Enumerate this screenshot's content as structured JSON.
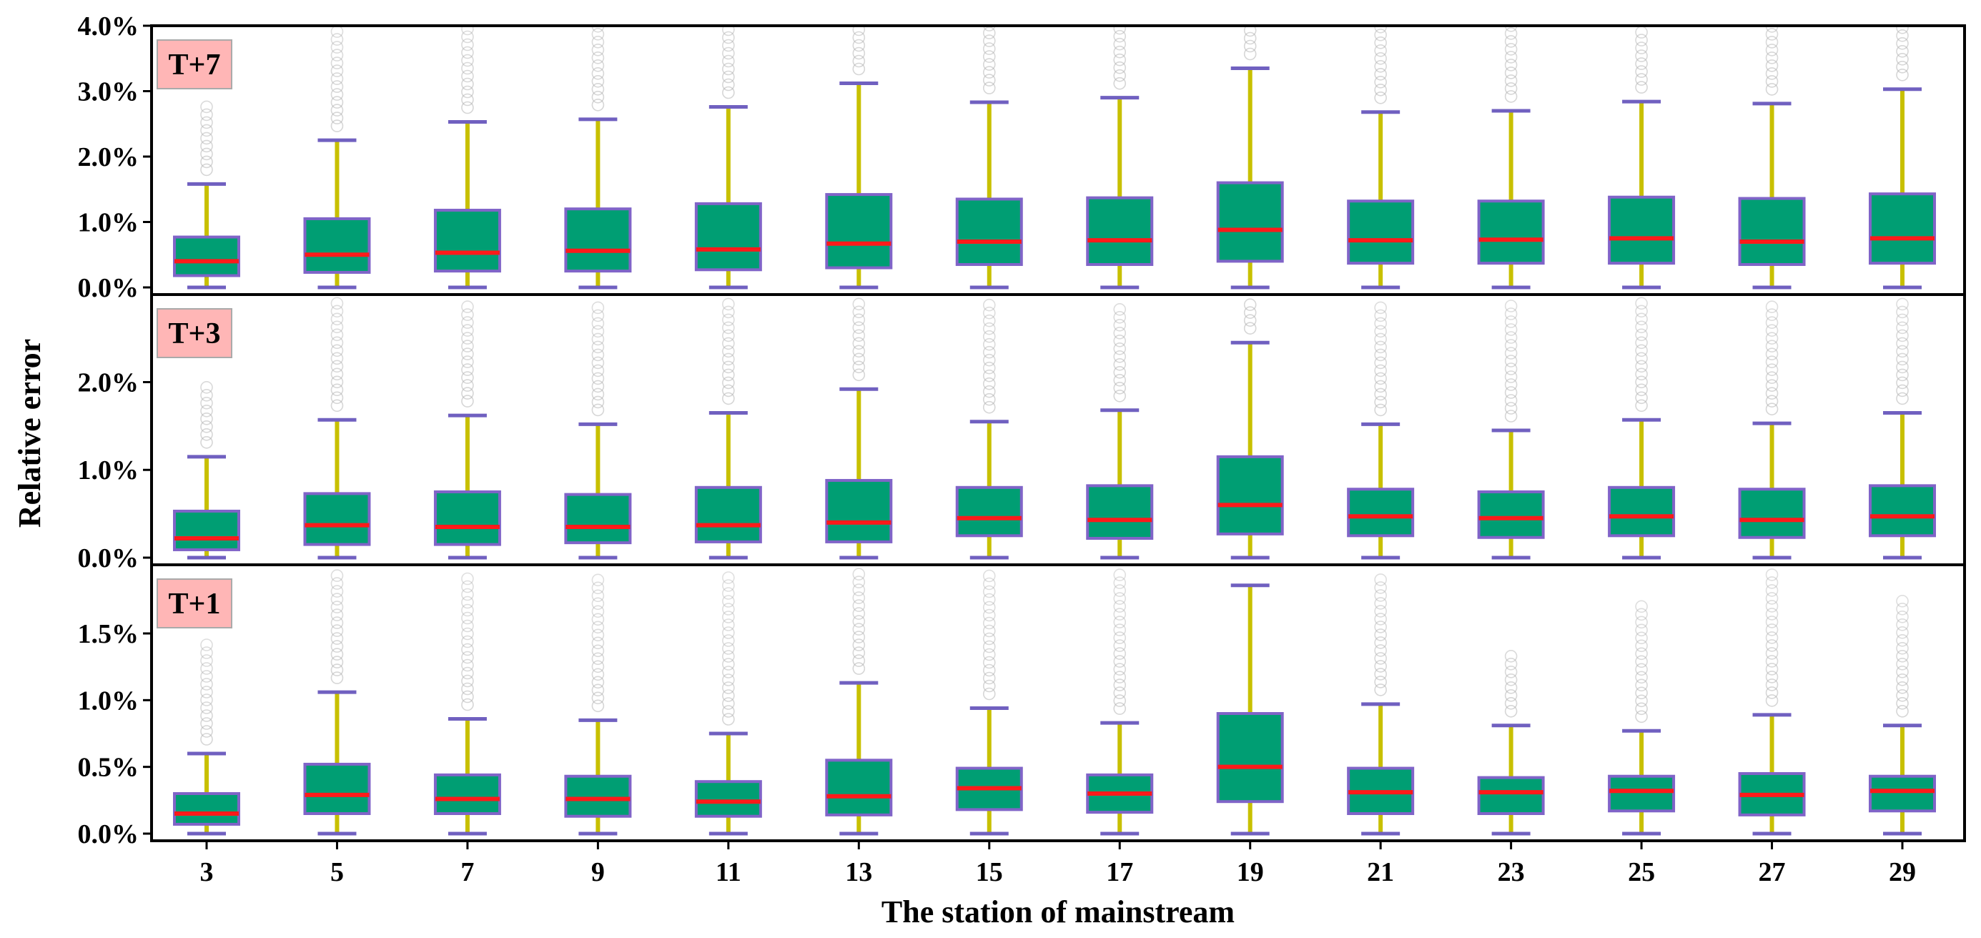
{
  "chart_data": {
    "type": "box",
    "xlabel": "The station of mainstream",
    "ylabel": "Relative error",
    "categories": [
      "3",
      "5",
      "7",
      "9",
      "11",
      "13",
      "15",
      "17",
      "19",
      "21",
      "23",
      "25",
      "27",
      "29"
    ],
    "colors": {
      "box_fill": "#009e73",
      "box_edge": "#8064c8",
      "median": "#ff1a1a",
      "whisker": "#c8c000",
      "cap": "#7060c0",
      "outlier": "#b4b4b4",
      "tag_bg": "#ffb6b6",
      "tag_border": "#aaaaaa"
    },
    "panels": [
      {
        "tag": "T+7",
        "ylim": [
          0,
          4.0
        ],
        "yticks": [
          0,
          1.0,
          2.0,
          3.0,
          4.0
        ],
        "ytick_labels": [
          "0.0%",
          "1.0%",
          "2.0%",
          "3.0%",
          "4.0%"
        ],
        "boxes": [
          {
            "station": "3",
            "whislo": 0.0,
            "q1": 0.18,
            "med": 0.4,
            "q3": 0.77,
            "whishi": 1.58,
            "outliers_to": 2.85
          },
          {
            "station": "5",
            "whislo": 0.0,
            "q1": 0.23,
            "med": 0.5,
            "q3": 1.05,
            "whishi": 2.25,
            "outliers_to": 4.0
          },
          {
            "station": "7",
            "whislo": 0.0,
            "q1": 0.25,
            "med": 0.53,
            "q3": 1.18,
            "whishi": 2.53,
            "outliers_to": 4.0
          },
          {
            "station": "9",
            "whislo": 0.0,
            "q1": 0.25,
            "med": 0.56,
            "q3": 1.2,
            "whishi": 2.57,
            "outliers_to": 4.0
          },
          {
            "station": "11",
            "whislo": 0.0,
            "q1": 0.27,
            "med": 0.58,
            "q3": 1.28,
            "whishi": 2.76,
            "outliers_to": 4.0
          },
          {
            "station": "13",
            "whislo": 0.0,
            "q1": 0.3,
            "med": 0.67,
            "q3": 1.42,
            "whishi": 3.12,
            "outliers_to": 4.0
          },
          {
            "station": "15",
            "whislo": 0.0,
            "q1": 0.35,
            "med": 0.7,
            "q3": 1.35,
            "whishi": 2.83,
            "outliers_to": 4.0
          },
          {
            "station": "17",
            "whislo": 0.0,
            "q1": 0.35,
            "med": 0.72,
            "q3": 1.37,
            "whishi": 2.9,
            "outliers_to": 4.0
          },
          {
            "station": "19",
            "whislo": 0.0,
            "q1": 0.4,
            "med": 0.88,
            "q3": 1.6,
            "whishi": 3.35,
            "outliers_to": 4.0
          },
          {
            "station": "21",
            "whislo": 0.0,
            "q1": 0.37,
            "med": 0.72,
            "q3": 1.32,
            "whishi": 2.68,
            "outliers_to": 4.0
          },
          {
            "station": "23",
            "whislo": 0.0,
            "q1": 0.37,
            "med": 0.73,
            "q3": 1.32,
            "whishi": 2.7,
            "outliers_to": 4.0
          },
          {
            "station": "25",
            "whislo": 0.0,
            "q1": 0.37,
            "med": 0.75,
            "q3": 1.38,
            "whishi": 2.84,
            "outliers_to": 4.0
          },
          {
            "station": "27",
            "whislo": 0.0,
            "q1": 0.35,
            "med": 0.7,
            "q3": 1.36,
            "whishi": 2.81,
            "outliers_to": 4.0
          },
          {
            "station": "29",
            "whislo": 0.0,
            "q1": 0.37,
            "med": 0.75,
            "q3": 1.43,
            "whishi": 3.03,
            "outliers_to": 4.0
          }
        ]
      },
      {
        "tag": "T+3",
        "ylim": [
          0,
          2.9
        ],
        "yticks": [
          0,
          1.0,
          2.0
        ],
        "ytick_labels": [
          "0.0%",
          "1.0%",
          "2.0%"
        ],
        "boxes": [
          {
            "station": "3",
            "whislo": 0.0,
            "q1": 0.09,
            "med": 0.22,
            "q3": 0.53,
            "whishi": 1.15,
            "outliers_to": 2.0
          },
          {
            "station": "5",
            "whislo": 0.0,
            "q1": 0.15,
            "med": 0.37,
            "q3": 0.73,
            "whishi": 1.57,
            "outliers_to": 2.9
          },
          {
            "station": "7",
            "whislo": 0.0,
            "q1": 0.15,
            "med": 0.35,
            "q3": 0.75,
            "whishi": 1.62,
            "outliers_to": 2.9
          },
          {
            "station": "9",
            "whislo": 0.0,
            "q1": 0.17,
            "med": 0.35,
            "q3": 0.72,
            "whishi": 1.52,
            "outliers_to": 2.9
          },
          {
            "station": "11",
            "whislo": 0.0,
            "q1": 0.18,
            "med": 0.37,
            "q3": 0.8,
            "whishi": 1.65,
            "outliers_to": 2.9
          },
          {
            "station": "13",
            "whislo": 0.0,
            "q1": 0.18,
            "med": 0.4,
            "q3": 0.88,
            "whishi": 1.92,
            "outliers_to": 2.9
          },
          {
            "station": "15",
            "whislo": 0.0,
            "q1": 0.25,
            "med": 0.45,
            "q3": 0.8,
            "whishi": 1.55,
            "outliers_to": 2.9
          },
          {
            "station": "17",
            "whislo": 0.0,
            "q1": 0.22,
            "med": 0.43,
            "q3": 0.82,
            "whishi": 1.68,
            "outliers_to": 2.9
          },
          {
            "station": "19",
            "whislo": 0.0,
            "q1": 0.27,
            "med": 0.6,
            "q3": 1.15,
            "whishi": 2.45,
            "outliers_to": 2.9
          },
          {
            "station": "21",
            "whislo": 0.0,
            "q1": 0.25,
            "med": 0.47,
            "q3": 0.78,
            "whishi": 1.52,
            "outliers_to": 2.9
          },
          {
            "station": "23",
            "whislo": 0.0,
            "q1": 0.23,
            "med": 0.45,
            "q3": 0.75,
            "whishi": 1.45,
            "outliers_to": 2.9
          },
          {
            "station": "25",
            "whislo": 0.0,
            "q1": 0.25,
            "med": 0.47,
            "q3": 0.8,
            "whishi": 1.57,
            "outliers_to": 2.9
          },
          {
            "station": "27",
            "whislo": 0.0,
            "q1": 0.23,
            "med": 0.43,
            "q3": 0.78,
            "whishi": 1.53,
            "outliers_to": 2.9
          },
          {
            "station": "29",
            "whislo": 0.0,
            "q1": 0.25,
            "med": 0.47,
            "q3": 0.82,
            "whishi": 1.65,
            "outliers_to": 2.9
          }
        ]
      },
      {
        "tag": "T+1",
        "ylim": [
          0,
          1.95
        ],
        "yticks": [
          0,
          0.5,
          1.0,
          1.5
        ],
        "ytick_labels": [
          "0.0%",
          "0.5%",
          "1.0%",
          "1.5%"
        ],
        "boxes": [
          {
            "station": "3",
            "whislo": 0.0,
            "q1": 0.07,
            "med": 0.15,
            "q3": 0.3,
            "whishi": 0.6,
            "outliers_to": 1.45
          },
          {
            "station": "5",
            "whislo": 0.0,
            "q1": 0.15,
            "med": 0.29,
            "q3": 0.52,
            "whishi": 1.06,
            "outliers_to": 1.95
          },
          {
            "station": "7",
            "whislo": 0.0,
            "q1": 0.15,
            "med": 0.26,
            "q3": 0.44,
            "whishi": 0.86,
            "outliers_to": 1.95
          },
          {
            "station": "9",
            "whislo": 0.0,
            "q1": 0.13,
            "med": 0.26,
            "q3": 0.43,
            "whishi": 0.85,
            "outliers_to": 1.95
          },
          {
            "station": "11",
            "whislo": 0.0,
            "q1": 0.13,
            "med": 0.24,
            "q3": 0.39,
            "whishi": 0.75,
            "outliers_to": 1.95
          },
          {
            "station": "13",
            "whislo": 0.0,
            "q1": 0.14,
            "med": 0.28,
            "q3": 0.55,
            "whishi": 1.13,
            "outliers_to": 1.95
          },
          {
            "station": "15",
            "whislo": 0.0,
            "q1": 0.18,
            "med": 0.34,
            "q3": 0.49,
            "whishi": 0.94,
            "outliers_to": 1.95
          },
          {
            "station": "17",
            "whislo": 0.0,
            "q1": 0.16,
            "med": 0.3,
            "q3": 0.44,
            "whishi": 0.83,
            "outliers_to": 1.95
          },
          {
            "station": "19",
            "whislo": 0.0,
            "q1": 0.24,
            "med": 0.5,
            "q3": 0.9,
            "whishi": 1.86,
            "outliers_to": 1.95
          },
          {
            "station": "21",
            "whislo": 0.0,
            "q1": 0.15,
            "med": 0.31,
            "q3": 0.49,
            "whishi": 0.97,
            "outliers_to": 1.95
          },
          {
            "station": "23",
            "whislo": 0.0,
            "q1": 0.15,
            "med": 0.31,
            "q3": 0.42,
            "whishi": 0.81,
            "outliers_to": 1.35
          },
          {
            "station": "25",
            "whislo": 0.0,
            "q1": 0.17,
            "med": 0.32,
            "q3": 0.43,
            "whishi": 0.77,
            "outliers_to": 1.75
          },
          {
            "station": "27",
            "whislo": 0.0,
            "q1": 0.14,
            "med": 0.29,
            "q3": 0.45,
            "whishi": 0.89,
            "outliers_to": 1.95
          },
          {
            "station": "29",
            "whislo": 0.0,
            "q1": 0.17,
            "med": 0.32,
            "q3": 0.43,
            "whishi": 0.81,
            "outliers_to": 1.75
          }
        ]
      }
    ]
  }
}
